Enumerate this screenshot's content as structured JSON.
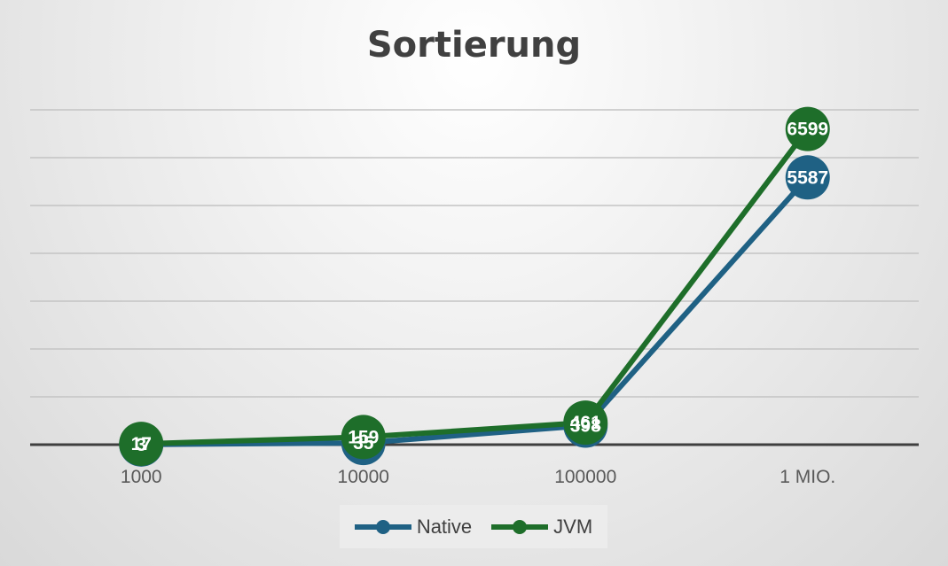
{
  "chart_data": {
    "type": "line",
    "title": "Sortierung",
    "categories": [
      "1000",
      "10000",
      "100000",
      "1 MIO."
    ],
    "ylim": [
      0,
      7000
    ],
    "grid": true,
    "legend_position": "bottom",
    "series": [
      {
        "name": "Native",
        "values": [
          3,
          35,
          398,
          5587
        ],
        "color": "#1f6184"
      },
      {
        "name": "JVM",
        "values": [
          17,
          159,
          461,
          6599
        ],
        "color": "#1e6e2a"
      }
    ]
  }
}
